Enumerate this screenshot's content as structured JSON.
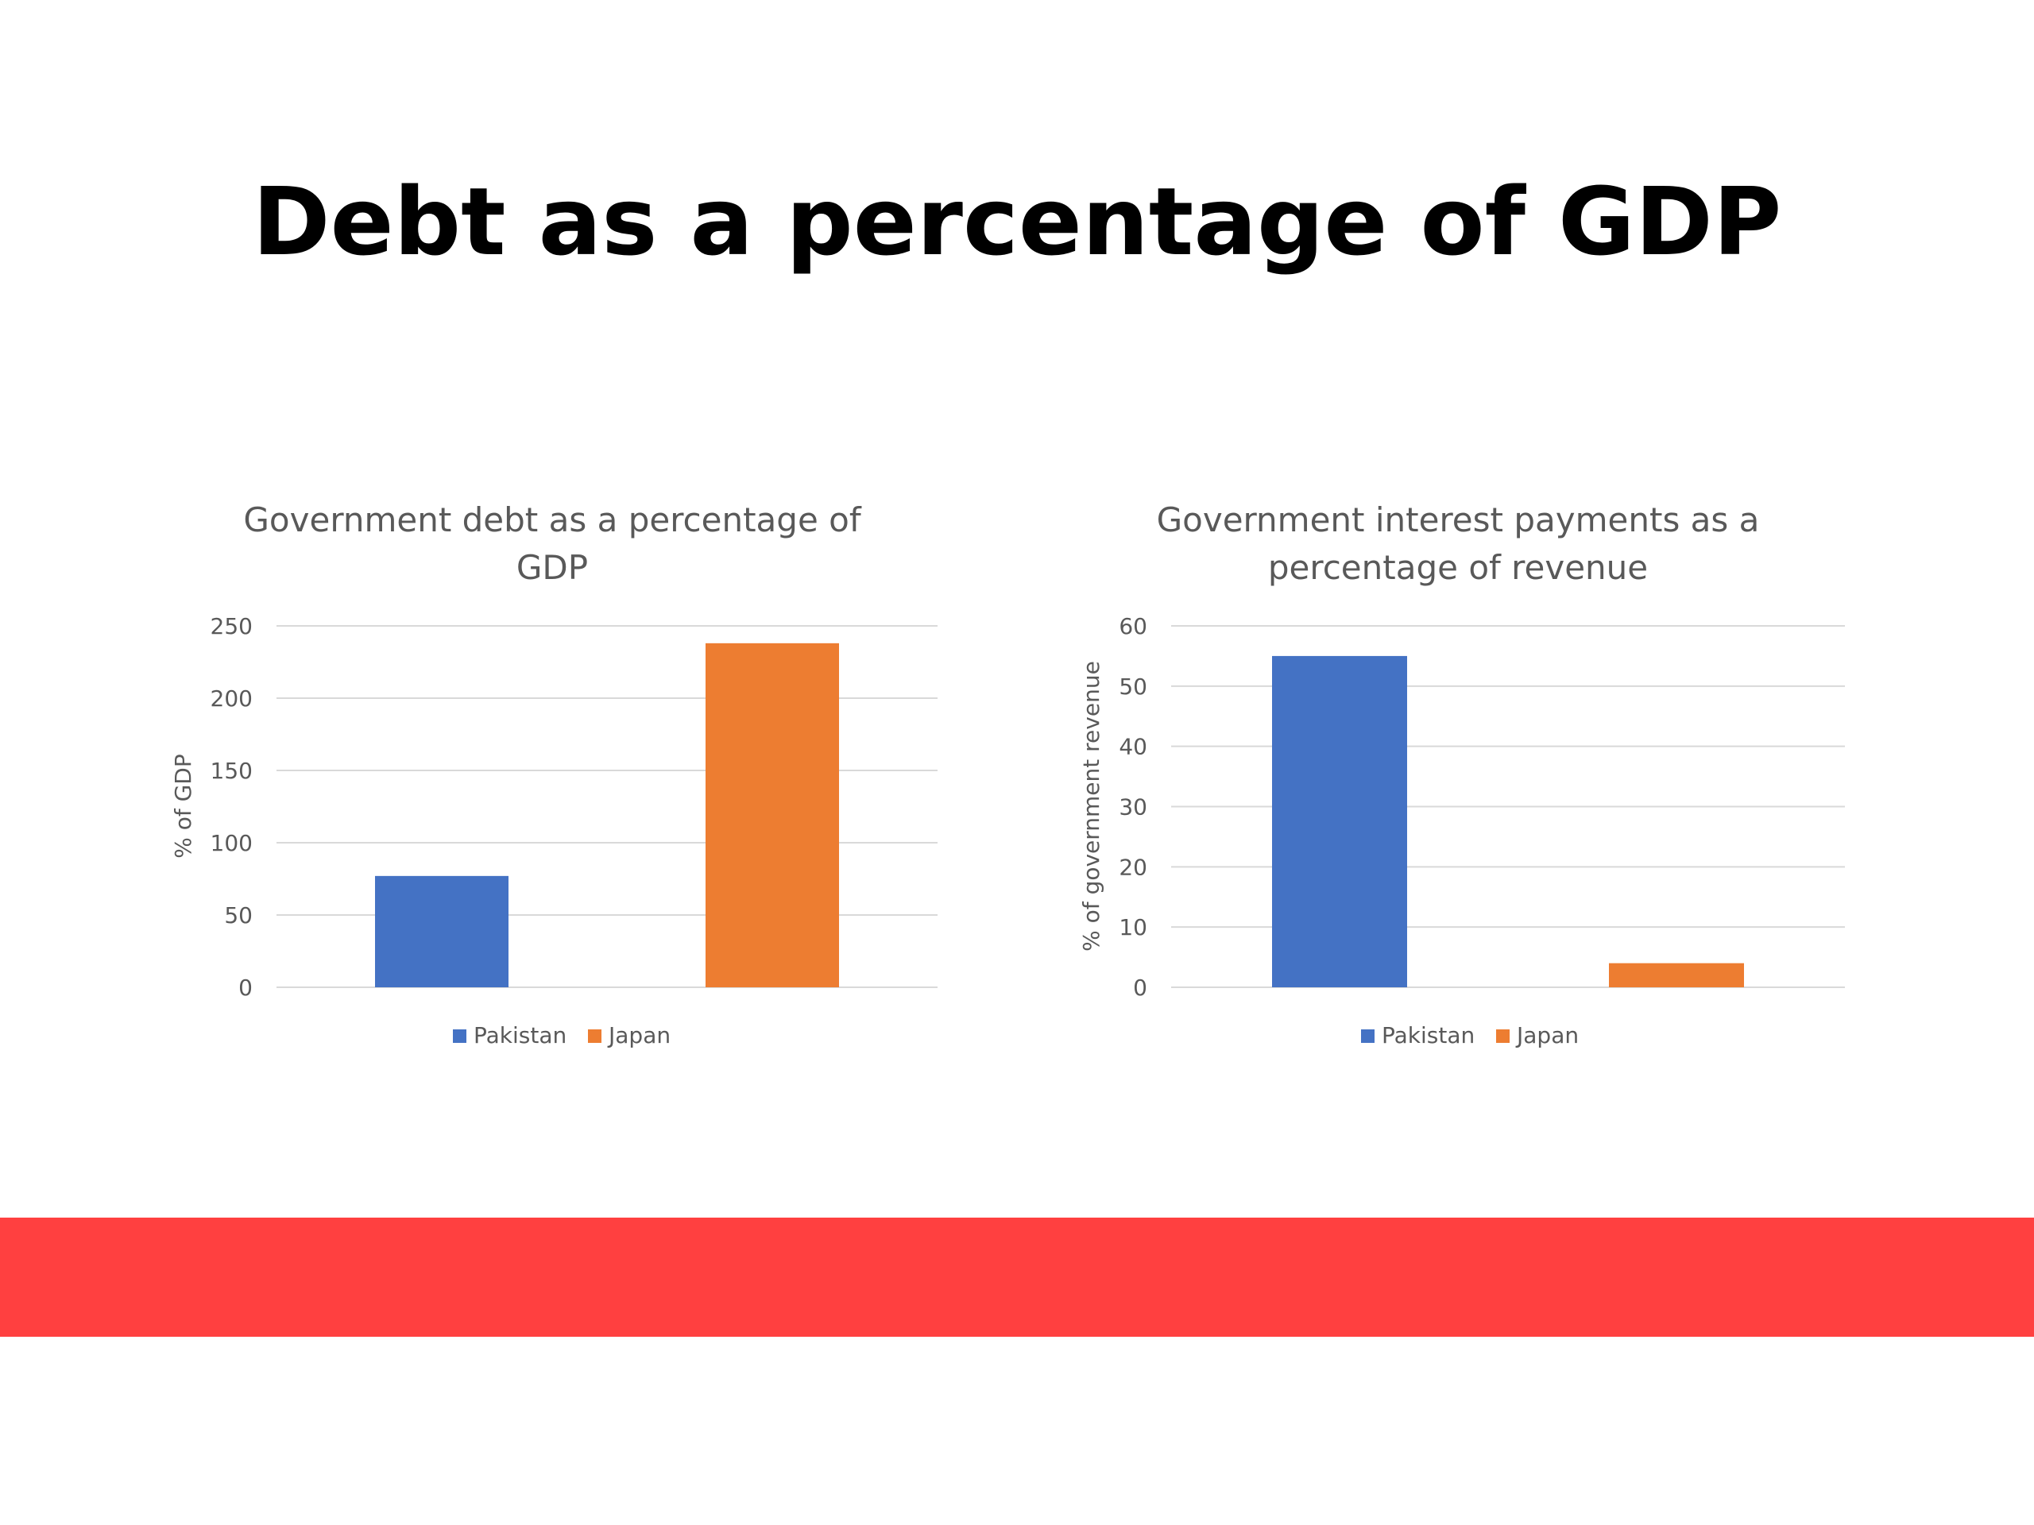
{
  "slide": {
    "title": "Debt as a percentage of GDP",
    "accent_color": "#ff4040"
  },
  "chart_data": [
    {
      "type": "bar",
      "title": "Government debt as a percentage of GDP",
      "ylabel": "% of GDP",
      "xlabel": "",
      "categories": [
        "Pakistan",
        "Japan"
      ],
      "values": [
        77,
        238
      ],
      "colors": [
        "#4472c4",
        "#ed7d31"
      ],
      "ylim": [
        0,
        250
      ],
      "yticks": [
        0,
        50,
        100,
        150,
        200,
        250
      ],
      "grid": true,
      "legend": "bottom"
    },
    {
      "type": "bar",
      "title": "Government interest payments as a percentage of revenue",
      "ylabel": "% of government revenue",
      "xlabel": "",
      "categories": [
        "Pakistan",
        "Japan"
      ],
      "values": [
        55,
        4
      ],
      "colors": [
        "#4472c4",
        "#ed7d31"
      ],
      "ylim": [
        0,
        60
      ],
      "yticks": [
        0,
        10,
        20,
        30,
        40,
        50,
        60
      ],
      "grid": true,
      "legend": "bottom"
    }
  ]
}
